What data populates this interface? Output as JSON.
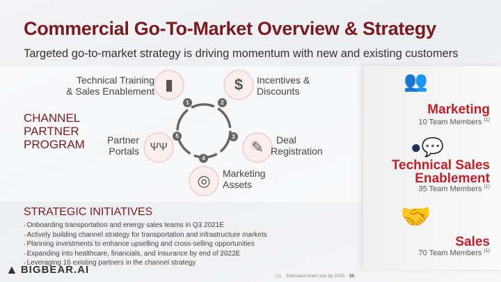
{
  "title": "Commercial Go-To-Market Overview & Strategy",
  "subtitle": "Targeted go-to-market strategy is driving momentum with new and existing customers",
  "channel": {
    "heading_lines": [
      "CHANNEL",
      "PARTNER",
      "PROGRAM"
    ],
    "items": [
      {
        "num": "1",
        "label_lines": [
          "Technical Training",
          "& Sales Enablement"
        ],
        "icon": "podium-icon"
      },
      {
        "num": "2",
        "label_lines": [
          "Incentives &",
          "Discounts"
        ],
        "icon": "dollar-icon"
      },
      {
        "num": "3",
        "label_lines": [
          "Deal",
          "Registration"
        ],
        "icon": "scroll-icon"
      },
      {
        "num": "4",
        "label_lines": [
          "Marketing",
          "Assets"
        ],
        "icon": "browser-target-icon"
      },
      {
        "num": "5",
        "label_lines": [
          "Partner",
          "Portals"
        ],
        "icon": "people-icon"
      }
    ]
  },
  "teams": [
    {
      "name_lines": [
        "Marketing"
      ],
      "members": "10 Team Members",
      "note": "(1)",
      "icon": "team-network-icon"
    },
    {
      "name_lines": [
        "Technical Sales",
        "Enablement"
      ],
      "members": "35 Team Members",
      "note": "(1)",
      "icon": "speaker-chat-icon"
    },
    {
      "name_lines": [
        "Sales"
      ],
      "members": "70 Team Members",
      "note": "(1)",
      "icon": "handshake-icon"
    }
  ],
  "initiatives": {
    "heading": "STRATEGIC INITIATIVES",
    "bullets": [
      "Onboarding transportation and energy sales teams in Q3 2021E",
      "Actively building channel strategy for transportation and infrastructure markets",
      "Planning investments to enhance upselling and cross-selling opportunities",
      "Expanding into healthcare, financials, and insurance by end of 2022E",
      "Leveraging 16 existing partners in the channel strategy"
    ]
  },
  "logo": "BIGBEAR.AI",
  "footnote": {
    "num": "(1)",
    "text": "Estimated team size by 2025.",
    "page": "25"
  },
  "colors": {
    "title": "#7a1a1f",
    "accent": "#c0202a",
    "icon": "#1f2f5c"
  }
}
